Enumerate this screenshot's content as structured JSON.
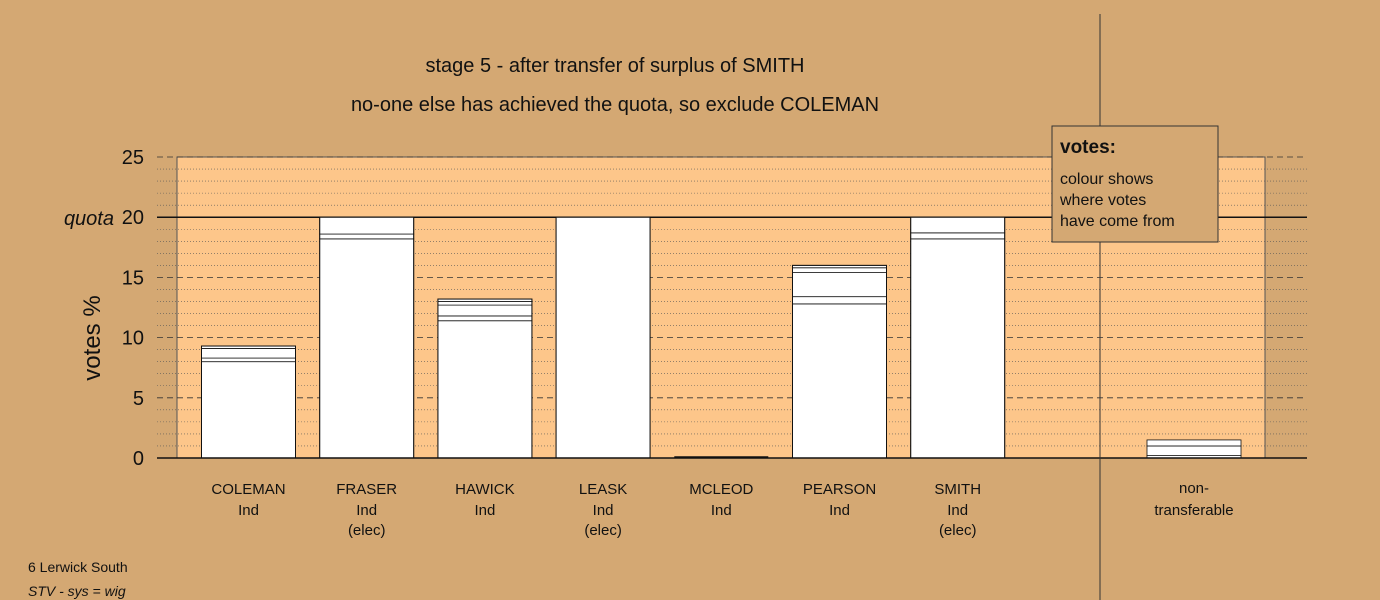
{
  "chart_data": {
    "type": "bar",
    "title": "stage 5 - after transfer of surplus of SMITH",
    "subtitle": "no-one else has achieved the quota, so exclude COLEMAN",
    "ylabel": "votes %",
    "ylim": [
      0,
      25
    ],
    "yticks": [
      "0",
      "5",
      "10",
      "15",
      "20",
      "25"
    ],
    "quota_value": 20,
    "quota_label": "quota",
    "candidates": [
      {
        "name": "COLEMAN",
        "party": "Ind",
        "status": "",
        "total": 9.3,
        "segments": [
          8.0,
          0.3,
          0.8,
          0.2
        ]
      },
      {
        "name": "FRASER",
        "party": "Ind",
        "status": "(elec)",
        "total": 20.0,
        "segments": [
          18.2,
          0.4,
          1.4
        ]
      },
      {
        "name": "HAWICK",
        "party": "Ind",
        "status": "",
        "total": 13.2,
        "segments": [
          11.4,
          0.4,
          0.9,
          0.3,
          0.2
        ]
      },
      {
        "name": "LEASK",
        "party": "Ind",
        "status": "(elec)",
        "total": 20.0,
        "segments": [
          20.0
        ]
      },
      {
        "name": "MCLEOD",
        "party": "Ind",
        "status": "",
        "total": 0,
        "segments": []
      },
      {
        "name": "PEARSON",
        "party": "Ind",
        "status": "",
        "total": 16.0,
        "segments": [
          12.8,
          0.6,
          2.0,
          0.4,
          0.2
        ]
      },
      {
        "name": "SMITH",
        "party": "Ind",
        "status": "(elec)",
        "total": 20.0,
        "segments": [
          18.2,
          0.5,
          1.3
        ]
      }
    ],
    "nontransferable": {
      "label_line1": "non-",
      "label_line2": "transferable",
      "total": 1.5,
      "segments": [
        0.2,
        0.8,
        0.5
      ]
    },
    "legend": {
      "title": "votes:",
      "lines": [
        "colour shows",
        "where votes",
        "have come from"
      ]
    },
    "grid": true,
    "colors": {
      "background": "#d4a873",
      "plot": "#fdc68a",
      "bar": "#ffffff",
      "line": "#111111"
    }
  },
  "footer": {
    "line1": "6 Lerwick South",
    "line2": "STV - sys = wig"
  }
}
